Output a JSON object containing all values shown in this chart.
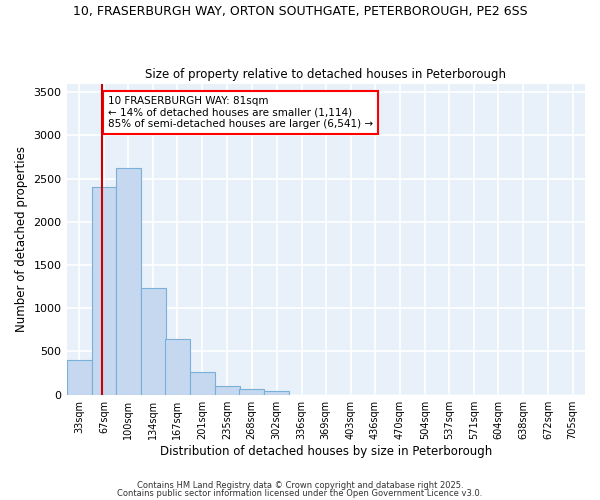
{
  "title1": "10, FRASERBURGH WAY, ORTON SOUTHGATE, PETERBOROUGH, PE2 6SS",
  "title2": "Size of property relative to detached houses in Peterborough",
  "xlabel": "Distribution of detached houses by size in Peterborough",
  "ylabel": "Number of detached properties",
  "bar_edges": [
    33,
    67,
    100,
    134,
    167,
    201,
    235,
    268,
    302,
    336,
    369,
    403,
    436,
    470,
    504,
    537,
    571,
    604,
    638,
    672,
    705
  ],
  "bar_heights": [
    400,
    2400,
    2620,
    1240,
    640,
    260,
    100,
    65,
    45,
    0,
    0,
    0,
    0,
    0,
    0,
    0,
    0,
    0,
    0,
    0,
    0
  ],
  "bar_color": "#c5d8f0",
  "bar_edge_color": "#7ab0d8",
  "property_line_x": 81,
  "property_line_color": "#cc0000",
  "annotation_title": "10 FRASERBURGH WAY: 81sqm",
  "annotation_line1": "← 14% of detached houses are smaller (1,114)",
  "annotation_line2": "85% of semi-detached houses are larger (6,541) →",
  "ylim": [
    0,
    3600
  ],
  "yticks": [
    0,
    500,
    1000,
    1500,
    2000,
    2500,
    3000,
    3500
  ],
  "background_color": "#e8f0fa",
  "grid_color": "#ffffff",
  "fig_background": "#ffffff",
  "footer1": "Contains HM Land Registry data © Crown copyright and database right 2025.",
  "footer2": "Contains public sector information licensed under the Open Government Licence v3.0."
}
